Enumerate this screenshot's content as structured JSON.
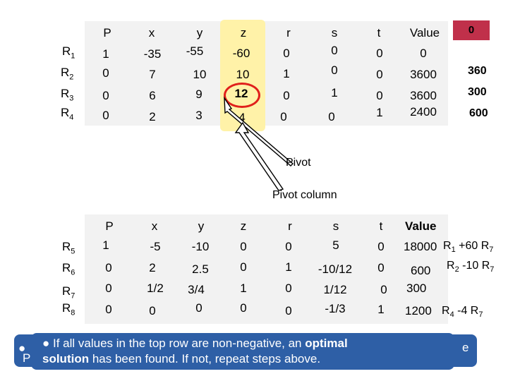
{
  "top_table": {
    "headers": [
      "P",
      "x",
      "y",
      "z",
      "r",
      "s",
      "t",
      "Value"
    ],
    "row_labels": [
      "R1",
      "R2",
      "R3",
      "R4"
    ],
    "rows": [
      [
        "1",
        "-35",
        "-55",
        "-60",
        "0",
        "0",
        "0",
        "0"
      ],
      [
        "0",
        "7",
        "10",
        "10",
        "1",
        "0",
        "0",
        "3600"
      ],
      [
        "0",
        "6",
        "9",
        "12",
        "0",
        "1",
        "0",
        "3600"
      ],
      [
        "0",
        "2",
        "3",
        "4",
        "0",
        "0",
        "1",
        "2400"
      ]
    ],
    "ratios": [
      "360",
      "300",
      "600"
    ],
    "corner_value": "0",
    "pivot_value": "12"
  },
  "labels": {
    "pivot": "Pivot",
    "pivot_column": "Pivot column"
  },
  "bottom_table": {
    "headers": [
      "P",
      "x",
      "y",
      "z",
      "r",
      "s",
      "t",
      "Value"
    ],
    "row_labels": [
      "R5",
      "R6",
      "R7",
      "R8"
    ],
    "rows": [
      [
        "1",
        "-5",
        "-10",
        "0",
        "0",
        "5",
        "0",
        "18000"
      ],
      [
        "0",
        "2",
        "2.5",
        "0",
        "1",
        "-10/12",
        "0",
        "600"
      ],
      [
        "0",
        "1/2",
        "3/4",
        "1",
        "0",
        "1/12",
        "0",
        "300"
      ],
      [
        "0",
        "0",
        "0",
        "0",
        "0",
        "-1/3",
        "1",
        "1200"
      ]
    ],
    "operations": [
      "R1 +60 R7",
      "R2 -10 R7",
      "",
      "R4 -4 R7"
    ]
  },
  "callout": {
    "bullet": "●",
    "line1_pre": "If all values in the top row are non-negative, an ",
    "line1_bold": "optimal",
    "line2_bold": "solution",
    "line2_post": " has been found. If not, repeat steps above.",
    "back_bullet": "●",
    "back_left": "P",
    "back_right": "e"
  },
  "colors": {
    "pivot_highlight": "#fff2a8",
    "circle": "#e0201b",
    "corner_box": "#c0304a",
    "callout": "#2e5fa6"
  }
}
